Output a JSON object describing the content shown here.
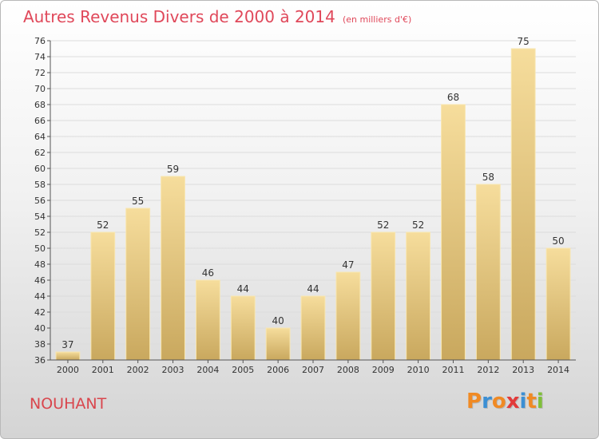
{
  "title": "Autres Revenus Divers de 2000 à 2014",
  "subtitle": "(en milliers d'€)",
  "place": "NOUHANT",
  "logo": {
    "text": "Proxiti",
    "colors": [
      "#f08a24",
      "#3b8fd4",
      "#f08a24",
      "#e23b3b",
      "#3b8fd4",
      "#f08a24",
      "#7fbf3a"
    ]
  },
  "colors": {
    "bar_top": "#f6dd9c",
    "bar_bottom": "#c9a85e",
    "title": "#e0485a"
  },
  "chart_data": {
    "type": "bar",
    "title": "Autres Revenus Divers de 2000 à 2014",
    "subtitle": "(en milliers d'€)",
    "categories": [
      "2000",
      "2001",
      "2002",
      "2003",
      "2004",
      "2005",
      "2006",
      "2007",
      "2008",
      "2009",
      "2010",
      "2011",
      "2012",
      "2013",
      "2014"
    ],
    "values": [
      37,
      52,
      55,
      59,
      46,
      44,
      40,
      44,
      47,
      52,
      52,
      68,
      58,
      75,
      50
    ],
    "ylim": [
      36,
      76
    ],
    "yticks": [
      36,
      38,
      40,
      42,
      44,
      46,
      48,
      50,
      52,
      54,
      56,
      58,
      60,
      62,
      64,
      66,
      68,
      70,
      72,
      74,
      76
    ],
    "grid": true,
    "data_labels": true
  }
}
